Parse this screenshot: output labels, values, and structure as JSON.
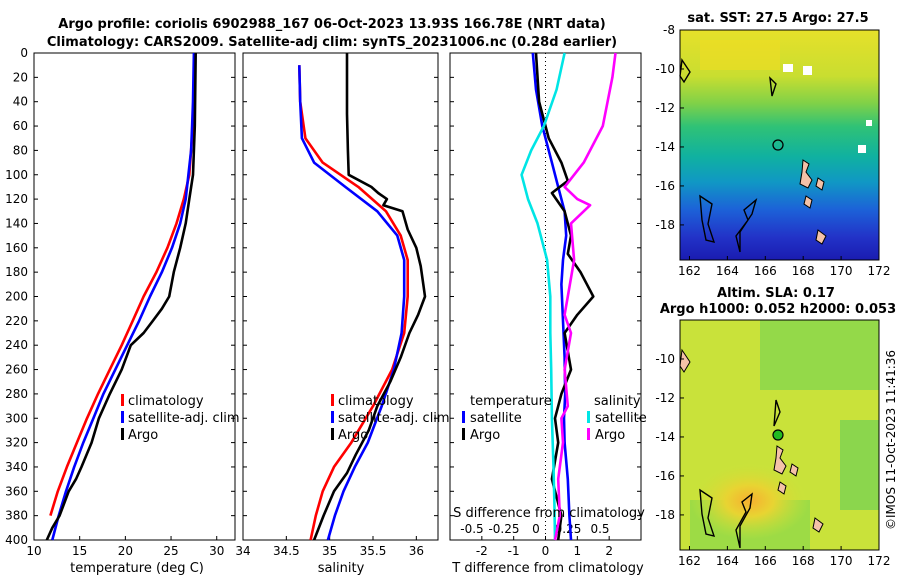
{
  "header": {
    "title_line1": "Argo profile: coriolis 6902988_167 06-Oct-2023 13.93S 166.78E (NRT data)",
    "title_line2": "Climatology: CARS2009. Satellite-adj clim: synTS_20231006.nc (0.28d earlier)"
  },
  "credit": "©IMOS 11-Oct-2023 11:41:36",
  "colors": {
    "climatology": "#ff0000",
    "satellite": "#0000ff",
    "argo": "#000000",
    "salinity_diff": "#ff00ff",
    "salinity_sat": "#00e5e5"
  },
  "chart_data": [
    {
      "id": "temperature",
      "type": "line",
      "xlabel": "temperature (deg C)",
      "ylabel": "",
      "xlim": [
        10,
        32
      ],
      "ylim": [
        400,
        0
      ],
      "xticks": [
        10,
        15,
        20,
        25,
        30
      ],
      "yticks": [
        0,
        20,
        40,
        60,
        80,
        100,
        120,
        140,
        160,
        180,
        200,
        220,
        240,
        260,
        280,
        300,
        320,
        340,
        360,
        380,
        400
      ],
      "legend": [
        "climatology",
        "satellite-adj. clim",
        "Argo"
      ],
      "series": [
        {
          "name": "climatology",
          "color": "#ff0000",
          "x": [
            27.6,
            27.5,
            27.4,
            27.2,
            27.0,
            26.4,
            25.6,
            24.6,
            23.4,
            22.0,
            20.8,
            19.6,
            18.3,
            17.0,
            15.8,
            14.7,
            13.6,
            12.6,
            11.8
          ],
          "y": [
            0,
            40,
            60,
            80,
            100,
            120,
            140,
            160,
            180,
            200,
            220,
            240,
            260,
            280,
            300,
            320,
            340,
            360,
            380
          ]
        },
        {
          "name": "satellite-adj. clim",
          "color": "#0000ff",
          "x": [
            27.5,
            27.4,
            27.3,
            27.2,
            26.9,
            26.6,
            26.0,
            25.1,
            24.0,
            22.7,
            21.5,
            20.2,
            18.9,
            17.6,
            16.5,
            15.4,
            14.4,
            13.5,
            12.7,
            12.0
          ],
          "y": [
            0,
            40,
            60,
            80,
            100,
            120,
            140,
            160,
            180,
            200,
            220,
            240,
            260,
            280,
            300,
            320,
            340,
            360,
            380,
            400
          ]
        },
        {
          "name": "Argo",
          "color": "#000000",
          "x": [
            27.7,
            27.6,
            27.4,
            27.0,
            26.6,
            26.0,
            25.3,
            24.8,
            24.0,
            23.0,
            22.0,
            20.6,
            19.6,
            18.3,
            17.1,
            16.3,
            15.2,
            14.6,
            13.8,
            12.8,
            12.0,
            11.4
          ],
          "y": [
            0,
            60,
            100,
            120,
            140,
            160,
            180,
            200,
            210,
            220,
            230,
            240,
            260,
            280,
            300,
            320,
            340,
            350,
            360,
            380,
            390,
            400
          ]
        }
      ]
    },
    {
      "id": "salinity",
      "type": "line",
      "xlabel": "salinity",
      "ylabel": "",
      "xlim": [
        34,
        36.25
      ],
      "ylim": [
        400,
        0
      ],
      "xticks": [
        34,
        34.5,
        35,
        35.5,
        36
      ],
      "legend": [
        "climatology",
        "satellite-adj. clim",
        "Argo"
      ],
      "series": [
        {
          "name": "climatology",
          "color": "#ff0000",
          "x": [
            34.65,
            34.66,
            34.72,
            34.92,
            35.33,
            35.65,
            35.82,
            35.9,
            35.9,
            35.86,
            35.72,
            35.5,
            35.25,
            35.05,
            34.92,
            34.84,
            34.78
          ],
          "y": [
            10,
            40,
            70,
            90,
            110,
            130,
            150,
            170,
            200,
            230,
            260,
            290,
            320,
            340,
            360,
            380,
            400
          ]
        },
        {
          "name": "satellite-adj. clim",
          "color": "#0000ff",
          "x": [
            34.65,
            34.66,
            34.68,
            34.82,
            35.18,
            35.55,
            35.78,
            35.86,
            35.86,
            35.83,
            35.74,
            35.6,
            35.44,
            35.29,
            35.16,
            35.06,
            34.98
          ],
          "y": [
            10,
            40,
            70,
            90,
            110,
            130,
            150,
            170,
            200,
            230,
            260,
            290,
            320,
            340,
            360,
            380,
            400
          ]
        },
        {
          "name": "Argo",
          "color": "#000000",
          "x": [
            35.2,
            35.2,
            35.21,
            35.22,
            35.48,
            35.56,
            35.66,
            35.62,
            35.84,
            35.9,
            36.0,
            36.05,
            36.08,
            36.1,
            36.02,
            35.92,
            35.82,
            35.7,
            35.55,
            35.45,
            35.3,
            35.2,
            35.05,
            34.93,
            34.82
          ],
          "y": [
            0,
            50,
            80,
            100,
            110,
            115,
            120,
            125,
            130,
            145,
            160,
            175,
            190,
            200,
            215,
            230,
            250,
            270,
            290,
            310,
            330,
            345,
            360,
            380,
            400
          ]
        }
      ]
    },
    {
      "id": "difference",
      "type": "line",
      "xlabel": "T difference from climatology",
      "xlabel_top": "S difference from climatology",
      "xlim": [
        -3,
        3
      ],
      "ylim": [
        400,
        0
      ],
      "xticks": [
        -2,
        -1,
        0,
        1,
        2
      ],
      "xticks_top": [
        -0.5,
        -0.25,
        0,
        0.25,
        0.5
      ],
      "legend_temperature": [
        "temperature",
        "satellite",
        "Argo"
      ],
      "legend_salinity": [
        "salinity",
        "satellite",
        "Argo"
      ],
      "series": [
        {
          "name": "temperature satellite",
          "color": "#0000ff",
          "x": [
            -0.4,
            -0.3,
            -0.1,
            0.2,
            0.4,
            0.6,
            0.65,
            0.55,
            0.5,
            0.55,
            0.6,
            0.62,
            0.58,
            0.6,
            0.7,
            0.75,
            0.8
          ],
          "y": [
            0,
            30,
            60,
            90,
            110,
            130,
            150,
            170,
            190,
            220,
            250,
            280,
            300,
            320,
            350,
            380,
            400
          ]
        },
        {
          "name": "temperature Argo",
          "color": "#000000",
          "x": [
            -0.3,
            -0.2,
            0.1,
            0.5,
            0.7,
            0.2,
            0.6,
            0.8,
            0.7,
            1.1,
            1.3,
            1.5,
            1.0,
            0.6,
            0.8,
            0.5,
            0.3,
            0.4,
            0.2,
            0.5,
            0.4
          ],
          "y": [
            0,
            40,
            70,
            90,
            105,
            115,
            130,
            150,
            165,
            180,
            190,
            200,
            215,
            230,
            260,
            280,
            300,
            320,
            350,
            380,
            400
          ]
        },
        {
          "name": "salinity satellite",
          "color": "#00e5e5",
          "x": [
            0.6,
            0.35,
            -0.05,
            -0.45,
            -0.75,
            -0.55,
            -0.25,
            0.05,
            0.15,
            0.15,
            0.18,
            0.2,
            0.25,
            0.28,
            0.3
          ],
          "y": [
            0,
            30,
            60,
            80,
            100,
            120,
            140,
            170,
            200,
            230,
            260,
            300,
            340,
            370,
            400
          ]
        },
        {
          "name": "salinity Argo",
          "color": "#ff00ff",
          "x": [
            2.2,
            2.1,
            1.8,
            1.2,
            0.6,
            1.0,
            1.4,
            0.8,
            0.9,
            0.7,
            0.6,
            0.8,
            0.6,
            0.7,
            0.5,
            0.55,
            0.4,
            0.45,
            0.3
          ],
          "y": [
            0,
            20,
            60,
            90,
            110,
            120,
            125,
            140,
            170,
            200,
            215,
            230,
            260,
            290,
            300,
            320,
            350,
            380,
            400
          ]
        }
      ]
    },
    {
      "id": "sst_map",
      "type": "heatmap",
      "title": "sat. SST: 27.5  Argo: 27.5",
      "xlim": [
        161.5,
        172
      ],
      "ylim": [
        -19.8,
        -8
      ],
      "xticks": [
        162,
        164,
        166,
        168,
        170,
        172
      ],
      "yticks": [
        -8,
        -10,
        -12,
        -14,
        -16,
        -18
      ],
      "marker": {
        "lon": 166.78,
        "lat": -13.93,
        "style": "open circle"
      }
    },
    {
      "id": "sla_map",
      "type": "heatmap",
      "title_line1": "Altim. SLA: 0.17",
      "title_line2": "Argo h1000: 0.052 h2000: 0.053",
      "xlim": [
        161.5,
        172
      ],
      "ylim": [
        -19.8,
        -8
      ],
      "xticks": [
        162,
        164,
        166,
        168,
        170,
        172
      ],
      "yticks": [
        -10,
        -12,
        -14,
        -16,
        -18
      ],
      "marker": {
        "lon": 166.78,
        "lat": -13.93,
        "style": "filled green circle"
      }
    }
  ]
}
